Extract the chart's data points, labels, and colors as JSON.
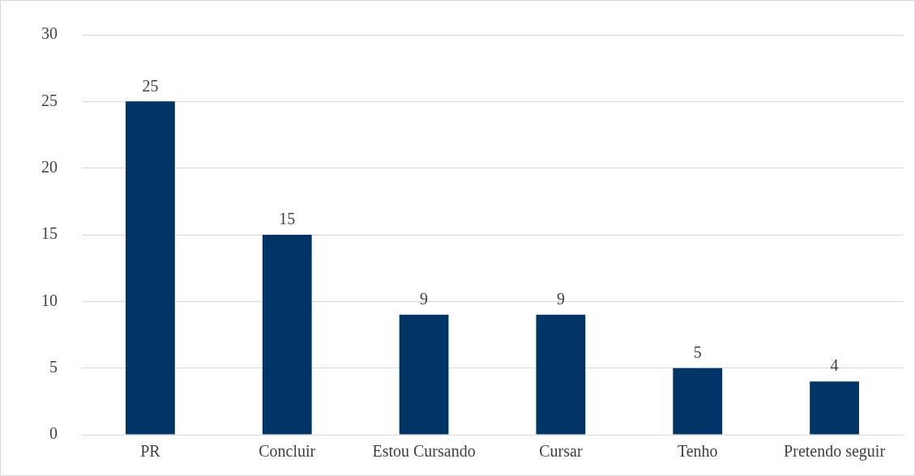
{
  "chart_data": {
    "type": "bar",
    "categories": [
      "PR",
      "Concluir",
      "Estou Cursando",
      "Cursar",
      "Tenho",
      "Pretendo seguir"
    ],
    "values": [
      25,
      15,
      9,
      9,
      5,
      4
    ],
    "color": "#003366",
    "ylim": [
      0,
      30
    ],
    "yticks": [
      0,
      5,
      10,
      15,
      20,
      25,
      30
    ],
    "grid": "y",
    "data_labels": true
  }
}
